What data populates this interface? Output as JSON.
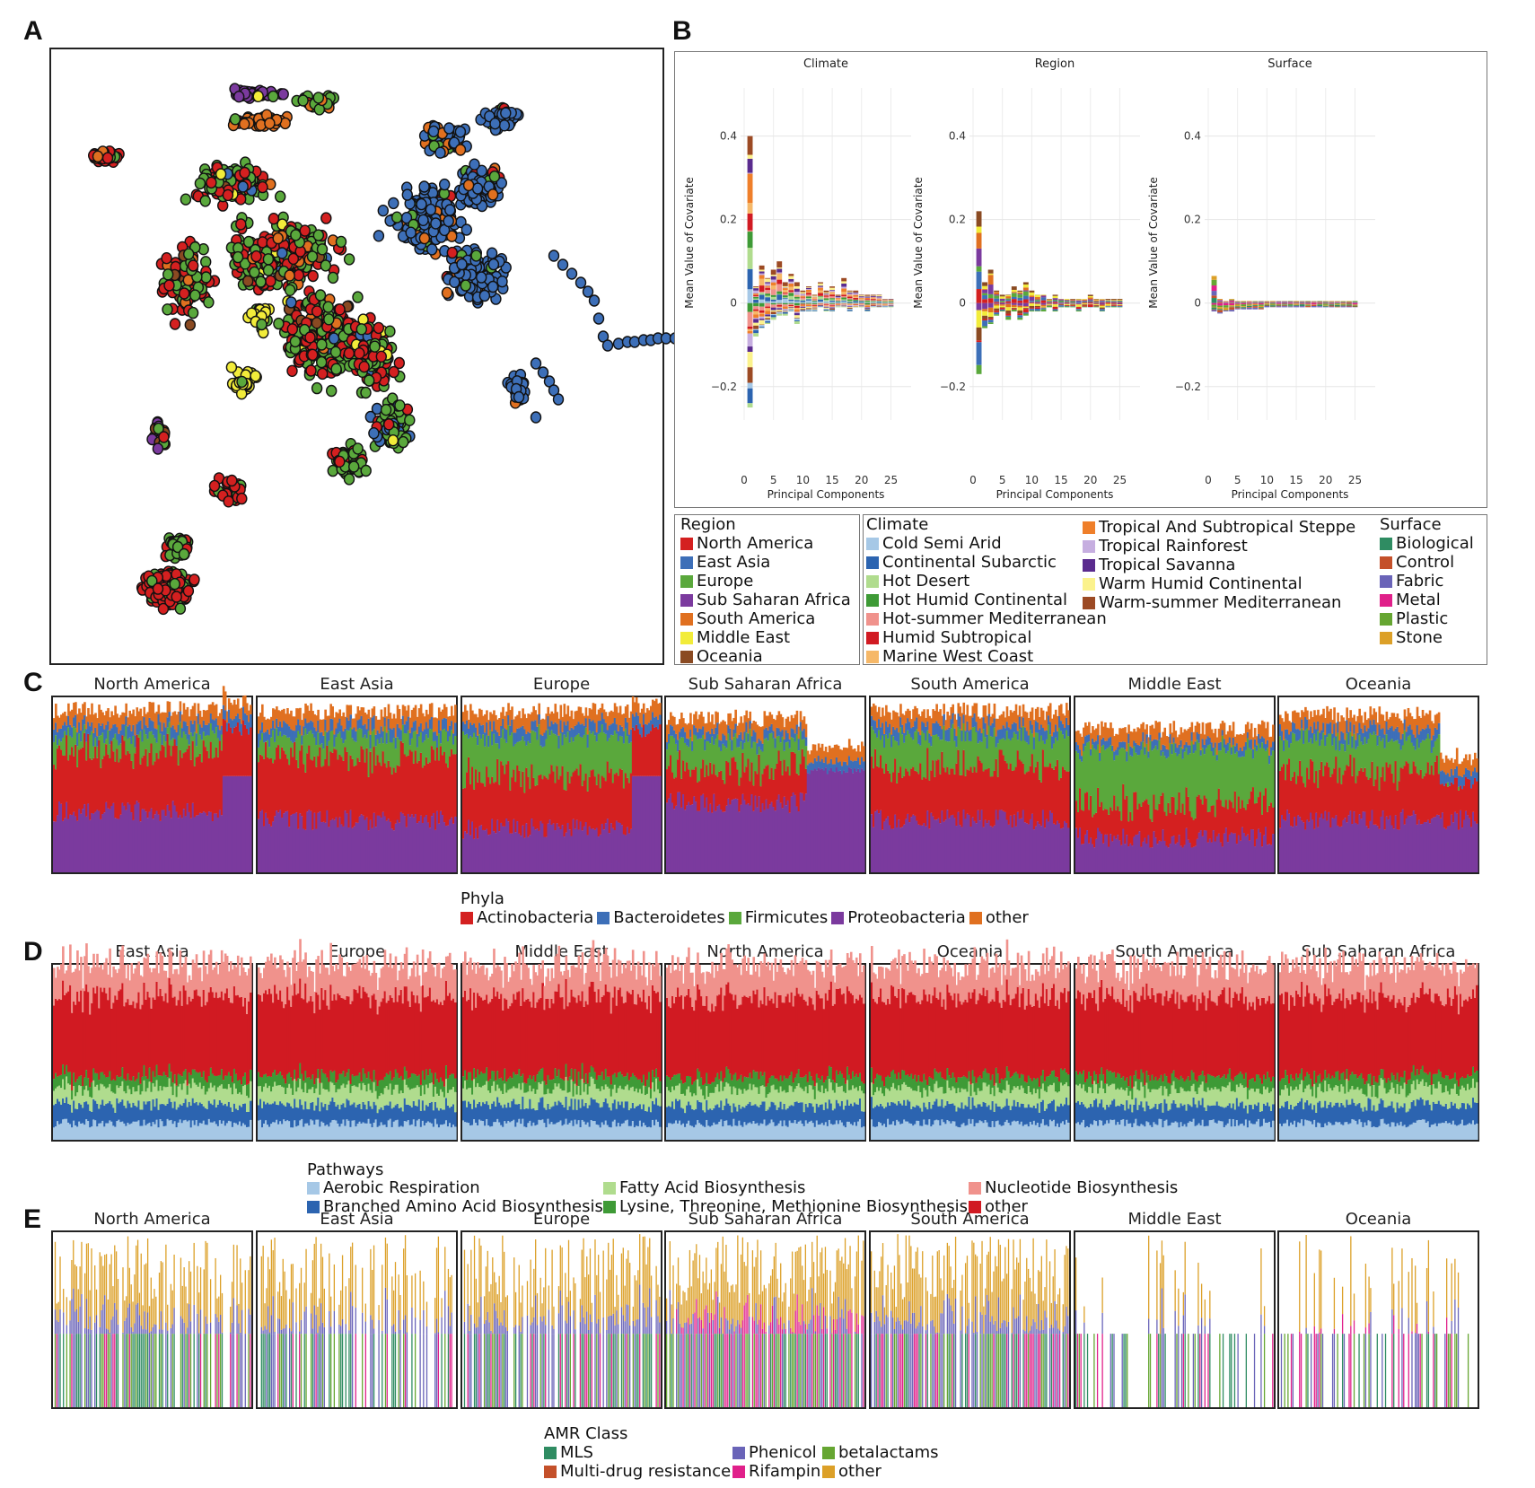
{
  "panels": {
    "a": "A",
    "b": "B",
    "c": "C",
    "d": "D",
    "e": "E"
  },
  "umap": {
    "region_colors": {
      "North America": "#d42020",
      "East Asia": "#3d6fb8",
      "Europe": "#5aa83c",
      "Sub Saharan Africa": "#7b3a9e",
      "South America": "#e07020",
      "Middle East": "#f2ec3a",
      "Oceania": "#8a4a22"
    }
  },
  "pca": {
    "ylabel": "Mean Value of Covariate",
    "xlabel": "Principal Components",
    "facets": [
      "Climate",
      "Region",
      "Surface"
    ],
    "chart_data": {
      "type": "bar",
      "x_ticks": [
        "0",
        "5",
        "10",
        "15",
        "20",
        "25"
      ],
      "y_ticks": [
        "0.4",
        "0.2",
        "0",
        "−0.2"
      ],
      "ylim": [
        -0.28,
        0.44
      ],
      "xlim": [
        0,
        26
      ],
      "facets": [
        {
          "name": "Climate",
          "pc1_max": 0.4,
          "pc1_min": -0.25,
          "pc_max": [
            0.4,
            0.04,
            0.09,
            0.06,
            0.08,
            0.1,
            0.05,
            0.07,
            0.05,
            0.03,
            0.04,
            0.02,
            0.05,
            0.03,
            0.04,
            0.02,
            0.06,
            0.03,
            0.03,
            0.02,
            0.02,
            0.02,
            0.02,
            0.01,
            0.01
          ],
          "pc_min": [
            -0.25,
            -0.08,
            -0.06,
            -0.05,
            -0.04,
            -0.03,
            -0.03,
            -0.02,
            -0.05,
            -0.02,
            -0.02,
            -0.02,
            -0.01,
            -0.02,
            -0.02,
            -0.01,
            -0.01,
            -0.02,
            -0.01,
            -0.01,
            -0.02,
            -0.01,
            -0.01,
            -0.01,
            -0.01
          ]
        },
        {
          "name": "Region",
          "pc1_max": 0.22,
          "pc1_min": -0.17,
          "pc_max": [
            0.22,
            0.05,
            0.08,
            0.03,
            0.02,
            0.02,
            0.04,
            0.03,
            0.05,
            0.03,
            0.02,
            0.02,
            0.01,
            0.02,
            0.01,
            0.01,
            0.01,
            0.01,
            0.01,
            0.02,
            0.01,
            0.01,
            0.01,
            0.01,
            0.01
          ],
          "pc_min": [
            -0.17,
            -0.06,
            -0.05,
            -0.03,
            -0.02,
            -0.04,
            -0.02,
            -0.04,
            -0.03,
            -0.02,
            -0.02,
            -0.02,
            -0.01,
            -0.02,
            -0.01,
            -0.01,
            -0.01,
            -0.02,
            -0.01,
            -0.01,
            -0.01,
            -0.02,
            -0.01,
            -0.01,
            -0.01
          ]
        },
        {
          "name": "Surface",
          "pc1_max": 0.065,
          "pc1_min": -0.02,
          "pc_max": [
            0.065,
            0.01,
            0.005,
            0.01,
            0.005,
            0.005,
            0.005,
            0.005,
            0.005,
            0.005,
            0.005,
            0.005,
            0.005,
            0.005,
            0.005,
            0.005,
            0.005,
            0.005,
            0.005,
            0.005,
            0.005,
            0.005,
            0.005,
            0.005,
            0.005
          ],
          "pc_min": [
            -0.02,
            -0.025,
            -0.02,
            -0.02,
            -0.015,
            -0.015,
            -0.015,
            -0.015,
            -0.015,
            -0.01,
            -0.01,
            -0.01,
            -0.01,
            -0.01,
            -0.01,
            -0.01,
            -0.01,
            -0.01,
            -0.01,
            -0.01,
            -0.01,
            -0.01,
            -0.01,
            -0.01,
            -0.01
          ]
        }
      ]
    }
  },
  "legend_b": {
    "region": {
      "title": "Region",
      "items": [
        {
          "label": "North America",
          "color": "#d42020"
        },
        {
          "label": "East Asia",
          "color": "#3d6fb8"
        },
        {
          "label": "Europe",
          "color": "#5aa83c"
        },
        {
          "label": "Sub Saharan Africa",
          "color": "#7b3a9e"
        },
        {
          "label": "South America",
          "color": "#e07020"
        },
        {
          "label": "Middle East",
          "color": "#f2ec3a"
        },
        {
          "label": "Oceania",
          "color": "#8a4a22"
        }
      ]
    },
    "climate": {
      "title": "Climate",
      "items": [
        {
          "label": "Cold Semi Arid",
          "color": "#a6c8e6"
        },
        {
          "label": "Continental Subarctic",
          "color": "#2c64b0"
        },
        {
          "label": "Hot Desert",
          "color": "#b0dc8e"
        },
        {
          "label": "Hot Humid Continental",
          "color": "#3e9a36"
        },
        {
          "label": "Hot-summer Mediterranean",
          "color": "#f0928c"
        },
        {
          "label": "Humid Subtropical",
          "color": "#d11a22"
        },
        {
          "label": "Marine West Coast",
          "color": "#f6b868"
        },
        {
          "label": "Tropical And Subtropical Steppe",
          "color": "#ef7f2a"
        },
        {
          "label": "Tropical Rainforest",
          "color": "#c6aee0"
        },
        {
          "label": "Tropical Savanna",
          "color": "#5a2b8e"
        },
        {
          "label": "Warm Humid Continental",
          "color": "#fbf28c"
        },
        {
          "label": "Warm-summer Mediterranean",
          "color": "#9c4a24"
        }
      ]
    },
    "surface": {
      "title": "Surface",
      "items": [
        {
          "label": "Biological",
          "color": "#2f8c62"
        },
        {
          "label": "Control",
          "color": "#c4502a"
        },
        {
          "label": "Fabric",
          "color": "#6a64b8"
        },
        {
          "label": "Metal",
          "color": "#e0208a"
        },
        {
          "label": "Plastic",
          "color": "#66a632"
        },
        {
          "label": "Stone",
          "color": "#dca028"
        }
      ]
    }
  },
  "phyla": {
    "facets": [
      "North America",
      "East Asia",
      "Europe",
      "Sub Saharan Africa",
      "South America",
      "Middle East",
      "Oceania"
    ],
    "legend_title": "Phyla",
    "legend": [
      {
        "label": "Actinobacteria",
        "color": "#d42020"
      },
      {
        "label": "Bacteroidetes",
        "color": "#3d6fb8"
      },
      {
        "label": "Firmicutes",
        "color": "#5aa83c"
      },
      {
        "label": "Proteobacteria",
        "color": "#7b3a9e"
      },
      {
        "label": "other",
        "color": "#e07020"
      }
    ]
  },
  "pathways": {
    "facets": [
      "East Asia",
      "Europe",
      "Middle East",
      "North America",
      "Oceania",
      "South America",
      "Sub Saharan Africa"
    ],
    "legend_title": "Pathways",
    "legend": [
      {
        "label": "Aerobic Respiration",
        "color": "#a6c8e6"
      },
      {
        "label": "Branched Amino Acid Biosynthesis",
        "color": "#2c64b0"
      },
      {
        "label": "Fatty Acid Biosynthesis",
        "color": "#b0dc8e"
      },
      {
        "label": "Lysine, Threonine, Methionine Biosynthesis",
        "color": "#3e9a36"
      },
      {
        "label": "Nucleotide Biosynthesis",
        "color": "#f0928c"
      },
      {
        "label": "other",
        "color": "#d11a22"
      }
    ]
  },
  "amr": {
    "facets": [
      "North America",
      "East Asia",
      "Europe",
      "Sub Saharan Africa",
      "South America",
      "Middle East",
      "Oceania"
    ],
    "legend_title": "AMR Class",
    "legend": [
      {
        "label": "MLS",
        "color": "#2f8c62"
      },
      {
        "label": "Multi-drug resistance",
        "color": "#c4502a"
      },
      {
        "label": "Phenicol",
        "color": "#6a64b8"
      },
      {
        "label": "Rifampin",
        "color": "#e0208a"
      },
      {
        "label": "betalactams",
        "color": "#66a632"
      },
      {
        "label": "other",
        "color": "#dca028"
      }
    ]
  }
}
